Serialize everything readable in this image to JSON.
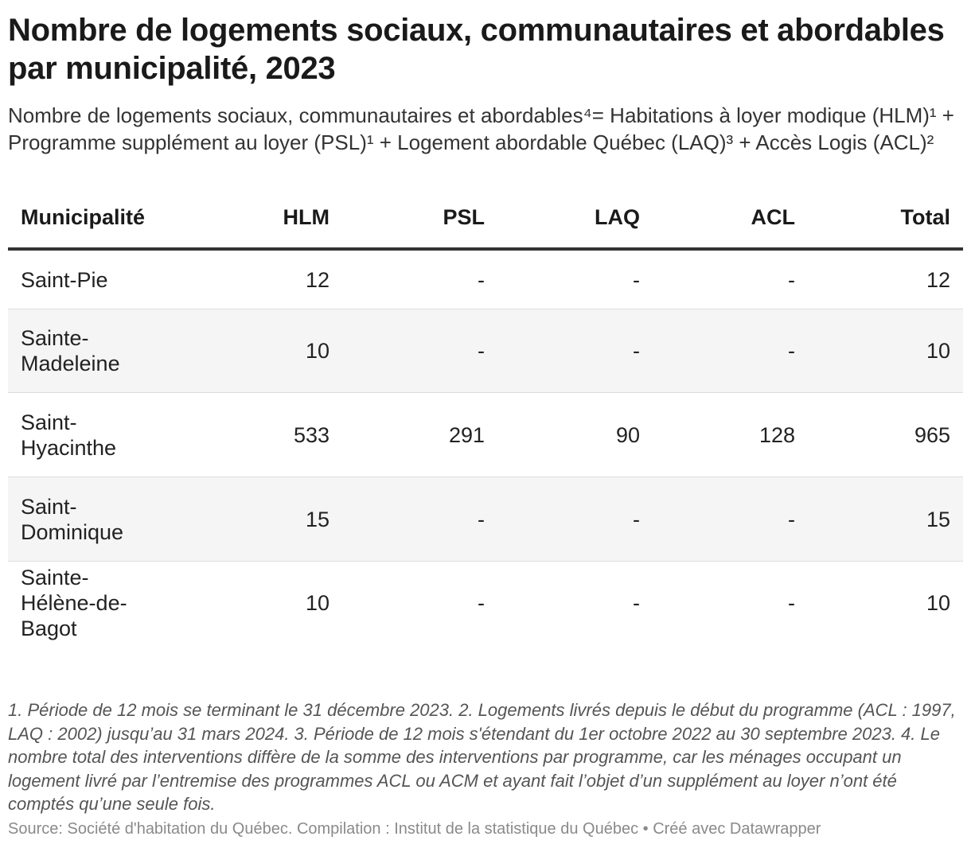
{
  "header": {
    "title": "Nombre de logements sociaux, communautaires et abordables par municipalité, 2023",
    "subtitle": "Nombre de logements sociaux, communautaires et abordables⁴= Habitations à loyer modique (HLM)¹ + Programme supplément au loyer (PSL)¹ + Logement abordable Québec (LAQ)³ + Accès Logis (ACL)²"
  },
  "chart_data": {
    "type": "table",
    "columns": [
      "Municipalité",
      "HLM",
      "PSL",
      "LAQ",
      "ACL",
      "Total"
    ],
    "rows": [
      [
        "Saint-Pie",
        "12",
        "-",
        "-",
        "-",
        "12"
      ],
      [
        "Sainte-Madeleine",
        "10",
        "-",
        "-",
        "-",
        "10"
      ],
      [
        "Saint-Hyacinthe",
        "533",
        "291",
        "90",
        "128",
        "965"
      ],
      [
        "Saint-Dominique",
        "15",
        "-",
        "-",
        "-",
        "15"
      ],
      [
        "Sainte-Hélène-de-Bagot",
        "10",
        "-",
        "-",
        "-",
        "10"
      ]
    ]
  },
  "footer": {
    "notes": "1. Période de 12 mois se terminant le 31 décembre 2023. 2. Logements livrés depuis le début du programme (ACL : 1997, LAQ : 2002) jusqu’au 31 mars 2024. 3. Période de 12 mois s'étendant du 1er octobre 2022 au 30 septembre 2023. 4. Le nombre total des interventions diffère de la somme des interventions par programme, car les ménages occupant un logement livré par l’entremise des programmes ACL ou ACM et ayant fait l’objet d’un supplément au loyer n’ont été comptés qu’une seule fois.",
    "source": "Source: Société d'habitation du Québec. Compilation : Institut de la statistique du Québec • Créé avec Datawrapper"
  },
  "colors": {
    "header_rule": "#333333",
    "row_shade": "#f5f5f5",
    "row_divider": "#dddddd"
  }
}
